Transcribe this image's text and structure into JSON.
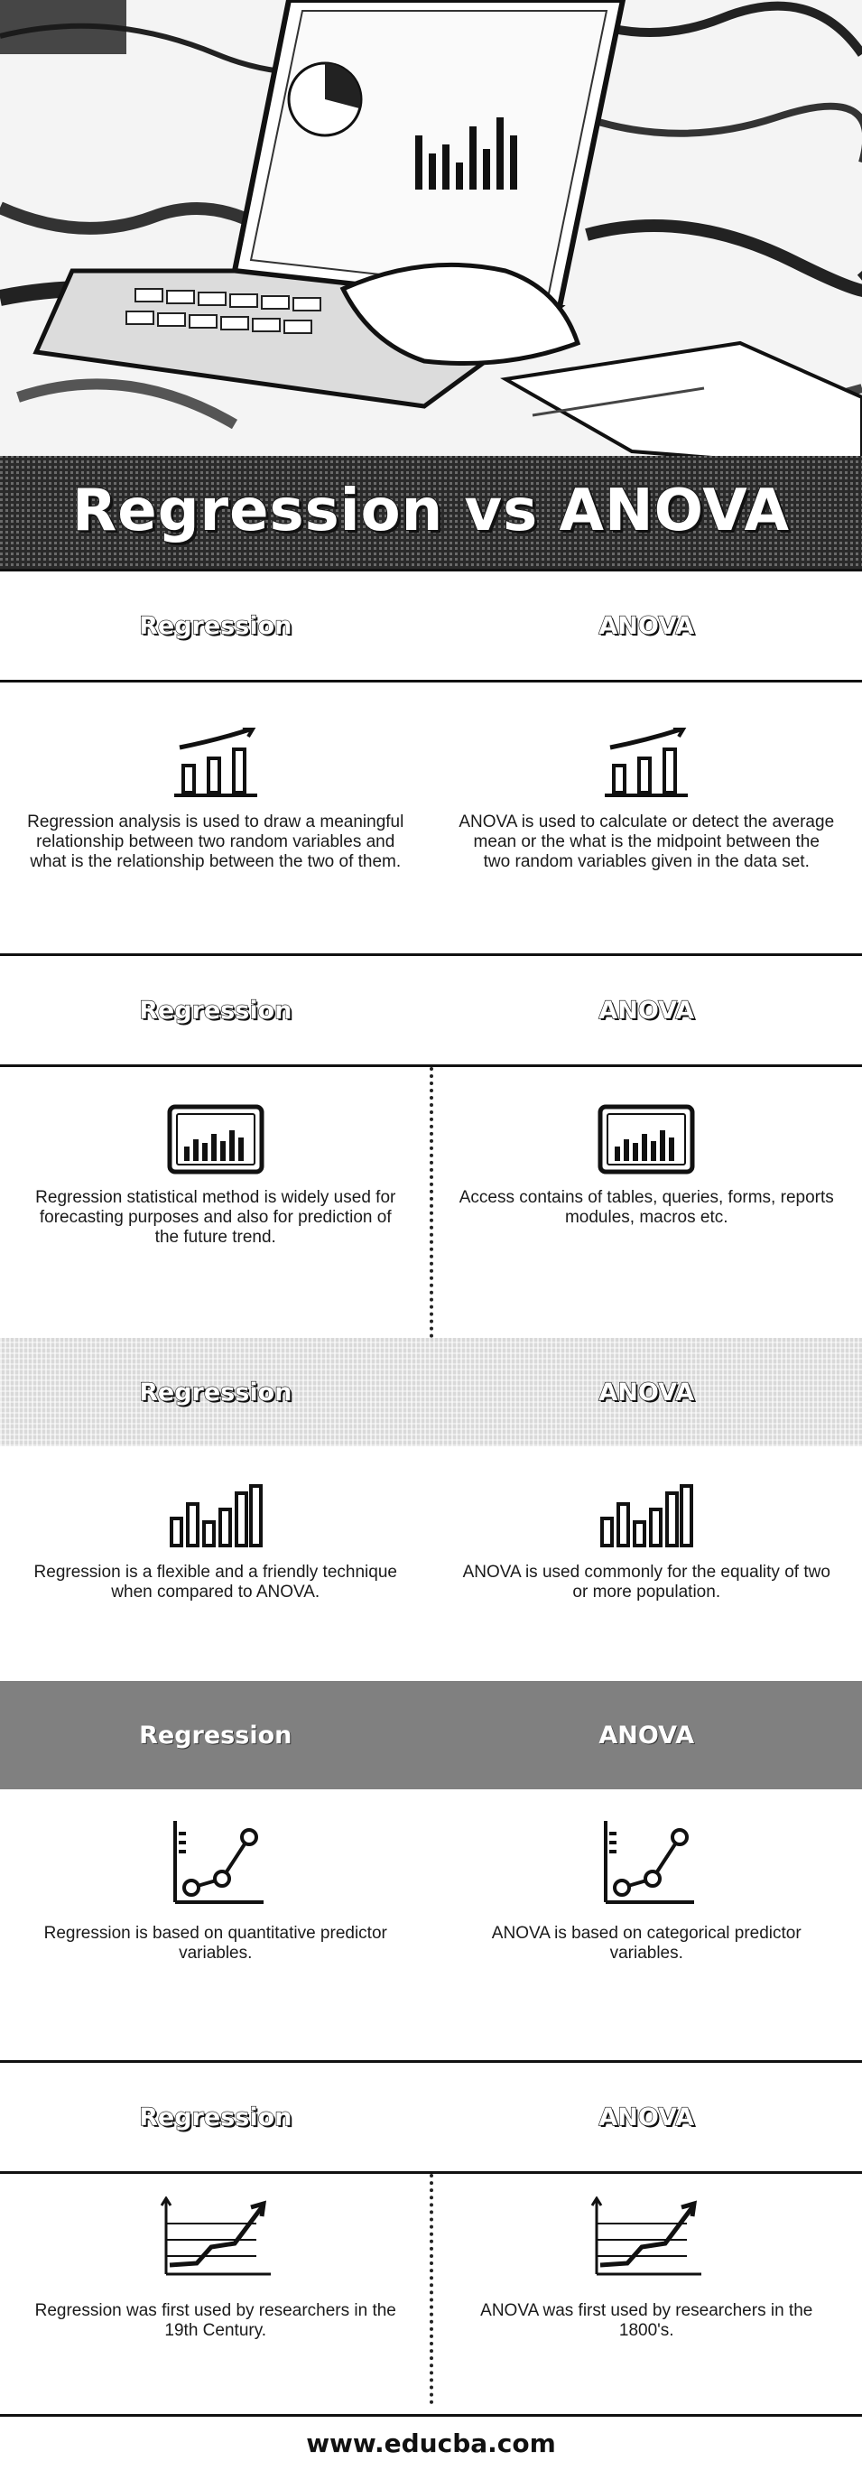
{
  "hero": {
    "title": "Regression vs ANOVA"
  },
  "rows": [
    {
      "left_header": "Regression",
      "right_header": "ANOVA",
      "left_text": "Regression analysis is used to draw a meaningful relationship between two random variables and what is the relationship between the two of them.",
      "right_text": "ANOVA is used to calculate or detect the average mean or the what is the midpoint between the two random variables given in the data set.",
      "icon": "bar-growth-icon"
    },
    {
      "left_header": "Regression",
      "right_header": "ANOVA",
      "left_text": "Regression statistical method is widely used for forecasting purposes and also for prediction of the future trend.",
      "right_text": "Access contains of tables, queries, forms, reports modules, macros etc.",
      "icon": "framed-bar-chart-icon"
    },
    {
      "left_header": "Regression",
      "right_header": "ANOVA",
      "left_text": "Regression is a flexible and a friendly technique when compared to ANOVA.",
      "right_text": "ANOVA is used commonly for the equality of two or more population.",
      "icon": "bar-chart-icon"
    },
    {
      "left_header": "Regression",
      "right_header": "ANOVA",
      "left_text": "Regression is based on quantitative predictor variables.",
      "right_text": "ANOVA is based on categorical predictor variables.",
      "icon": "line-graph-icon"
    },
    {
      "left_header": "Regression",
      "right_header": "ANOVA",
      "left_text": "Regression was first used by researchers in the 19th Century.",
      "right_text": "ANOVA was first used by researchers in the 1800's.",
      "icon": "trend-arrow-icon"
    }
  ],
  "footer": {
    "url": "www.educba.com"
  },
  "colors": {
    "dark_header": "#808080",
    "dotted_header": "#d9d9d9",
    "text": "#1a1a1a"
  }
}
